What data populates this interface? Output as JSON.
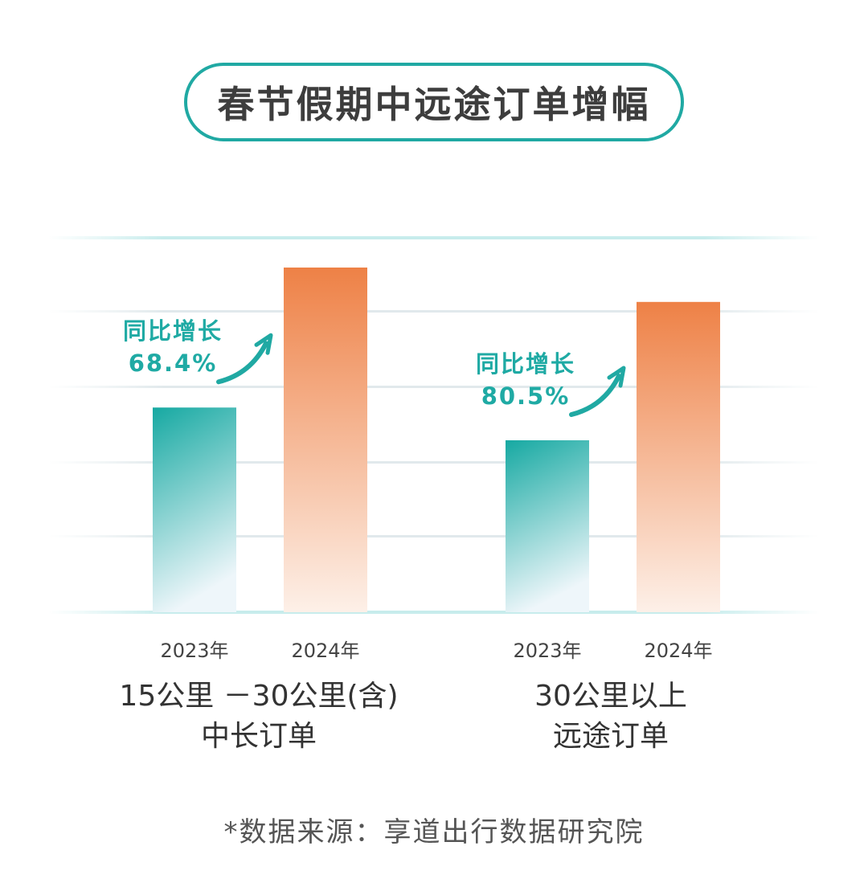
{
  "chart_data": {
    "type": "bar",
    "title": "春节假期中远途订单增幅",
    "groups": [
      {
        "label_line1": "15公里 －30公里(含)",
        "label_line2": "中长订单",
        "growth_label": "同比增长",
        "growth_value": "68.4%",
        "bars": [
          {
            "category": "2023年",
            "value": 100
          },
          {
            "category": "2024年",
            "value": 168.4
          }
        ]
      },
      {
        "label_line1": "30公里以上",
        "label_line2": "远途订单",
        "growth_label": "同比增长",
        "growth_value": "80.5%",
        "bars": [
          {
            "category": "2023年",
            "value": 84
          },
          {
            "category": "2024年",
            "value": 151.6
          }
        ]
      }
    ],
    "ylim": [
      0,
      168.4
    ],
    "grid": true,
    "colors": {
      "year_2023": "#16a9a2",
      "year_2024": "#ee8146",
      "accent": "#20a9a3"
    }
  },
  "source_text": "*数据来源：享道出行数据研究院"
}
